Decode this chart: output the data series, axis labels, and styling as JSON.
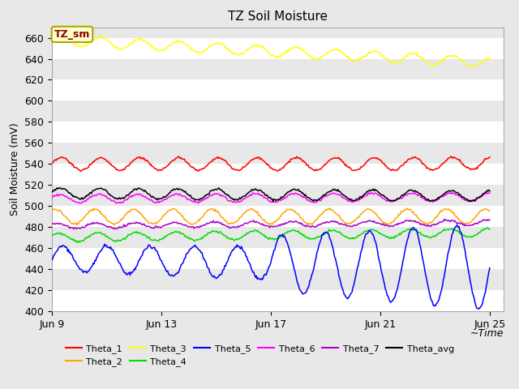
{
  "title": "TZ Soil Moisture",
  "ylabel": "Soil Moisture (mV)",
  "xlabel": "~Time",
  "annotation": "TZ_sm",
  "x_tick_labels": [
    "Jun 9",
    "Jun 13",
    "Jun 17",
    "Jun 21",
    "Jun 25"
  ],
  "x_tick_positions": [
    0,
    4,
    8,
    12,
    16
  ],
  "ylim": [
    400,
    670
  ],
  "yticks": [
    400,
    420,
    440,
    460,
    480,
    500,
    520,
    540,
    560,
    580,
    600,
    620,
    640,
    660
  ],
  "series": {
    "Theta_1": {
      "color": "#ff0000",
      "base": 540,
      "amp": 6,
      "freq": 2.8,
      "trend": 0.0,
      "phase": 0.0
    },
    "Theta_2": {
      "color": "#ffa500",
      "base": 490,
      "amp": 7,
      "freq": 2.8,
      "trend": 0.0,
      "phase": 1.0
    },
    "Theta_3": {
      "color": "#ffff00",
      "base": 658,
      "amp": 5,
      "freq": 2.8,
      "trend": -1.35,
      "phase": 0.0
    },
    "Theta_4": {
      "color": "#00dd00",
      "base": 470,
      "amp": 4,
      "freq": 2.8,
      "trend": 0.3,
      "phase": 0.5
    },
    "Theta_5": {
      "color": "#0000ff",
      "base": 450,
      "amp": 12,
      "freq": 2.5,
      "trend": -0.5,
      "phase": 0.0
    },
    "Theta_6": {
      "color": "#ff00ff",
      "base": 507,
      "amp": 4,
      "freq": 2.8,
      "trend": 0.1,
      "phase": 0.3
    },
    "Theta_7": {
      "color": "#aa00cc",
      "base": 481,
      "amp": 2.5,
      "freq": 2.8,
      "trend": 0.2,
      "phase": 0.7
    },
    "Theta_avg": {
      "color": "#000000",
      "base": 512,
      "amp": 5,
      "freq": 2.8,
      "trend": -0.15,
      "phase": 0.2
    }
  },
  "background_color": "#e8e8e8",
  "plot_bg_color": "#e8e8e8",
  "stripe_color": "#ffffff",
  "title_fontsize": 11,
  "axis_fontsize": 9,
  "tick_fontsize": 9,
  "legend_fontsize": 8
}
